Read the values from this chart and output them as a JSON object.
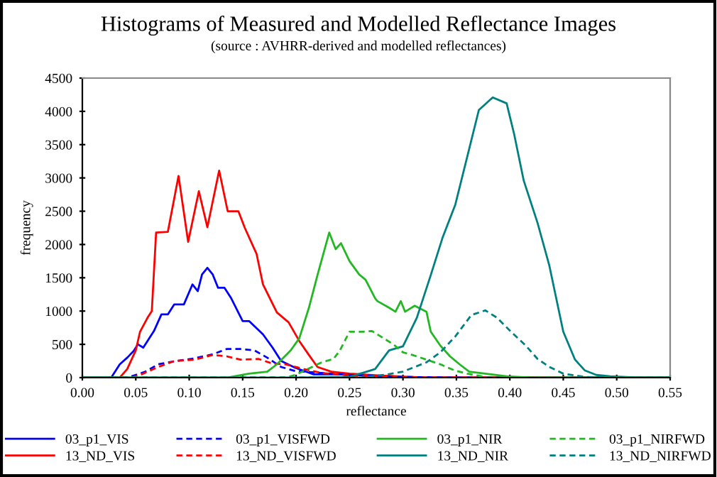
{
  "chart_data": {
    "type": "line",
    "title": "Histograms of Measured and Modelled Reflectance Images",
    "subtitle": "(source : AVHRR-derived and modelled reflectances)",
    "xlabel": "reflectance",
    "ylabel": "frequency",
    "xlim": [
      0,
      0.55
    ],
    "ylim": [
      0,
      4500
    ],
    "xticks": [
      {
        "value": 0,
        "label": "0.00"
      },
      {
        "value": 0.05,
        "label": "0.05"
      },
      {
        "value": 0.1,
        "label": "0.10"
      },
      {
        "value": 0.15,
        "label": "0.15"
      },
      {
        "value": 0.2,
        "label": "0.20"
      },
      {
        "value": 0.25,
        "label": "0.25"
      },
      {
        "value": 0.3,
        "label": "0.30"
      },
      {
        "value": 0.35,
        "label": "0.35"
      },
      {
        "value": 0.4,
        "label": "0.40"
      },
      {
        "value": 0.45,
        "label": "0.45"
      },
      {
        "value": 0.5,
        "label": "0.50"
      },
      {
        "value": 0.55,
        "label": "0.55"
      }
    ],
    "yticks": [
      0,
      500,
      1000,
      1500,
      2000,
      2500,
      3000,
      3500,
      4000,
      4500
    ],
    "grid": false,
    "legend": "bottom",
    "marker": "none",
    "series": [
      {
        "name": "03_p1_VIS",
        "color": "#0000ff",
        "line_style": "solid",
        "x": [
          0,
          0.027,
          0.035,
          0.042,
          0.048,
          0.052,
          0.057,
          0.067,
          0.074,
          0.08,
          0.086,
          0.095,
          0.103,
          0.108,
          0.112,
          0.117,
          0.122,
          0.127,
          0.133,
          0.139,
          0.15,
          0.156,
          0.169,
          0.178,
          0.186,
          0.199,
          0.216,
          0.25,
          0.3,
          0.55
        ],
        "values": [
          0,
          0,
          200,
          300,
          400,
          500,
          450,
          700,
          950,
          950,
          1100,
          1100,
          1400,
          1300,
          1550,
          1650,
          1550,
          1350,
          1350,
          1200,
          850,
          850,
          650,
          450,
          250,
          150,
          50,
          50,
          0,
          0
        ]
      },
      {
        "name": "13_ND_VIS",
        "color": "#ff0000",
        "line_style": "solid",
        "x": [
          0,
          0.035,
          0.042,
          0.05,
          0.054,
          0.061,
          0.065,
          0.069,
          0.08,
          0.09,
          0.099,
          0.109,
          0.117,
          0.128,
          0.136,
          0.146,
          0.152,
          0.163,
          0.169,
          0.182,
          0.193,
          0.203,
          0.212,
          0.22,
          0.233,
          0.25,
          0.28,
          0.32,
          0.55
        ],
        "values": [
          0,
          0,
          130,
          410,
          690,
          900,
          1000,
          2180,
          2190,
          3030,
          2040,
          2800,
          2260,
          3110,
          2500,
          2500,
          2250,
          1860,
          1400,
          980,
          830,
          550,
          340,
          160,
          90,
          60,
          30,
          0,
          0
        ]
      },
      {
        "name": "03_p1_VISFWD",
        "color": "#0000ff",
        "line_style": "dashed",
        "x": [
          0,
          0.04,
          0.046,
          0.059,
          0.071,
          0.088,
          0.105,
          0.122,
          0.135,
          0.148,
          0.161,
          0.173,
          0.186,
          0.199,
          0.224,
          0.25,
          0.3,
          0.35,
          0.55
        ],
        "values": [
          0,
          0,
          20,
          90,
          200,
          250,
          290,
          350,
          430,
          430,
          410,
          300,
          160,
          100,
          70,
          40,
          10,
          0,
          0
        ]
      },
      {
        "name": "13_ND_VISFWD",
        "color": "#ff0000",
        "line_style": "dashed",
        "x": [
          0,
          0.045,
          0.054,
          0.071,
          0.086,
          0.105,
          0.122,
          0.135,
          0.148,
          0.165,
          0.178,
          0.19,
          0.207,
          0.224,
          0.25,
          0.28,
          0.3,
          0.55
        ],
        "values": [
          0,
          0,
          40,
          160,
          250,
          270,
          340,
          320,
          270,
          280,
          210,
          200,
          130,
          70,
          30,
          10,
          0,
          0
        ]
      },
      {
        "name": "03_p1_NIR",
        "color": "#22b822",
        "line_style": "solid",
        "x": [
          0,
          0.135,
          0.156,
          0.173,
          0.182,
          0.195,
          0.203,
          0.212,
          0.22,
          0.231,
          0.237,
          0.242,
          0.25,
          0.259,
          0.265,
          0.274,
          0.276,
          0.287,
          0.293,
          0.298,
          0.302,
          0.311,
          0.322,
          0.326,
          0.335,
          0.344,
          0.353,
          0.362,
          0.377,
          0.397,
          0.42,
          0.55
        ],
        "values": [
          0,
          0,
          60,
          90,
          200,
          410,
          590,
          1050,
          1540,
          2180,
          1930,
          2020,
          1750,
          1550,
          1470,
          1190,
          1150,
          1050,
          990,
          1150,
          990,
          1080,
          990,
          690,
          480,
          320,
          200,
          90,
          60,
          20,
          0,
          0
        ]
      },
      {
        "name": "13_ND_NIR",
        "color": "#008080",
        "line_style": "solid",
        "x": [
          0,
          0.2,
          0.25,
          0.274,
          0.287,
          0.3,
          0.313,
          0.326,
          0.337,
          0.349,
          0.36,
          0.371,
          0.384,
          0.397,
          0.404,
          0.413,
          0.426,
          0.437,
          0.45,
          0.461,
          0.47,
          0.481,
          0.494,
          0.52,
          0.55
        ],
        "values": [
          0,
          0,
          10,
          130,
          410,
          470,
          900,
          1540,
          2100,
          2600,
          3310,
          4020,
          4210,
          4120,
          3660,
          2960,
          2320,
          1680,
          690,
          270,
          110,
          40,
          20,
          0,
          0
        ]
      },
      {
        "name": "03_p1_NIRFWD",
        "color": "#22b822",
        "line_style": "dashed",
        "x": [
          0,
          0.19,
          0.199,
          0.224,
          0.235,
          0.241,
          0.25,
          0.263,
          0.271,
          0.282,
          0.291,
          0.3,
          0.309,
          0.322,
          0.335,
          0.348,
          0.36,
          0.38,
          0.55
        ],
        "values": [
          0,
          0,
          40,
          230,
          280,
          410,
          690,
          690,
          700,
          590,
          500,
          380,
          340,
          270,
          200,
          110,
          60,
          0,
          0
        ]
      },
      {
        "name": "13_ND_NIRFWD",
        "color": "#008080",
        "line_style": "dashed",
        "x": [
          0,
          0.26,
          0.282,
          0.3,
          0.322,
          0.335,
          0.349,
          0.364,
          0.377,
          0.388,
          0.401,
          0.415,
          0.426,
          0.437,
          0.45,
          0.47,
          0.5,
          0.55
        ],
        "values": [
          0,
          0,
          40,
          90,
          230,
          380,
          620,
          940,
          1010,
          900,
          690,
          480,
          280,
          160,
          60,
          10,
          0,
          0
        ]
      }
    ]
  }
}
